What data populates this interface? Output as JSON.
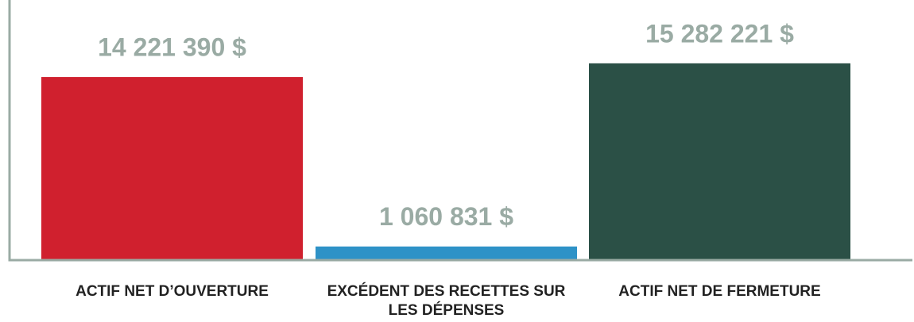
{
  "chart_data": {
    "type": "bar",
    "categories": [
      "ACTIF NET D’OUVERTURE",
      "EXCÉDENT DES RECETTES SUR LES DÉPENSES",
      "ACTIF NET DE FERMETURE"
    ],
    "values": [
      14221390,
      1060831,
      15282221
    ],
    "value_labels": [
      "14 221 390 $",
      "1 060 831 $",
      "15 282 221 $"
    ],
    "colors": [
      "#d0202e",
      "#2e92c7",
      "#2b5046"
    ],
    "axis_color": "#9aaba4",
    "ylim": [
      0,
      20200000
    ]
  }
}
